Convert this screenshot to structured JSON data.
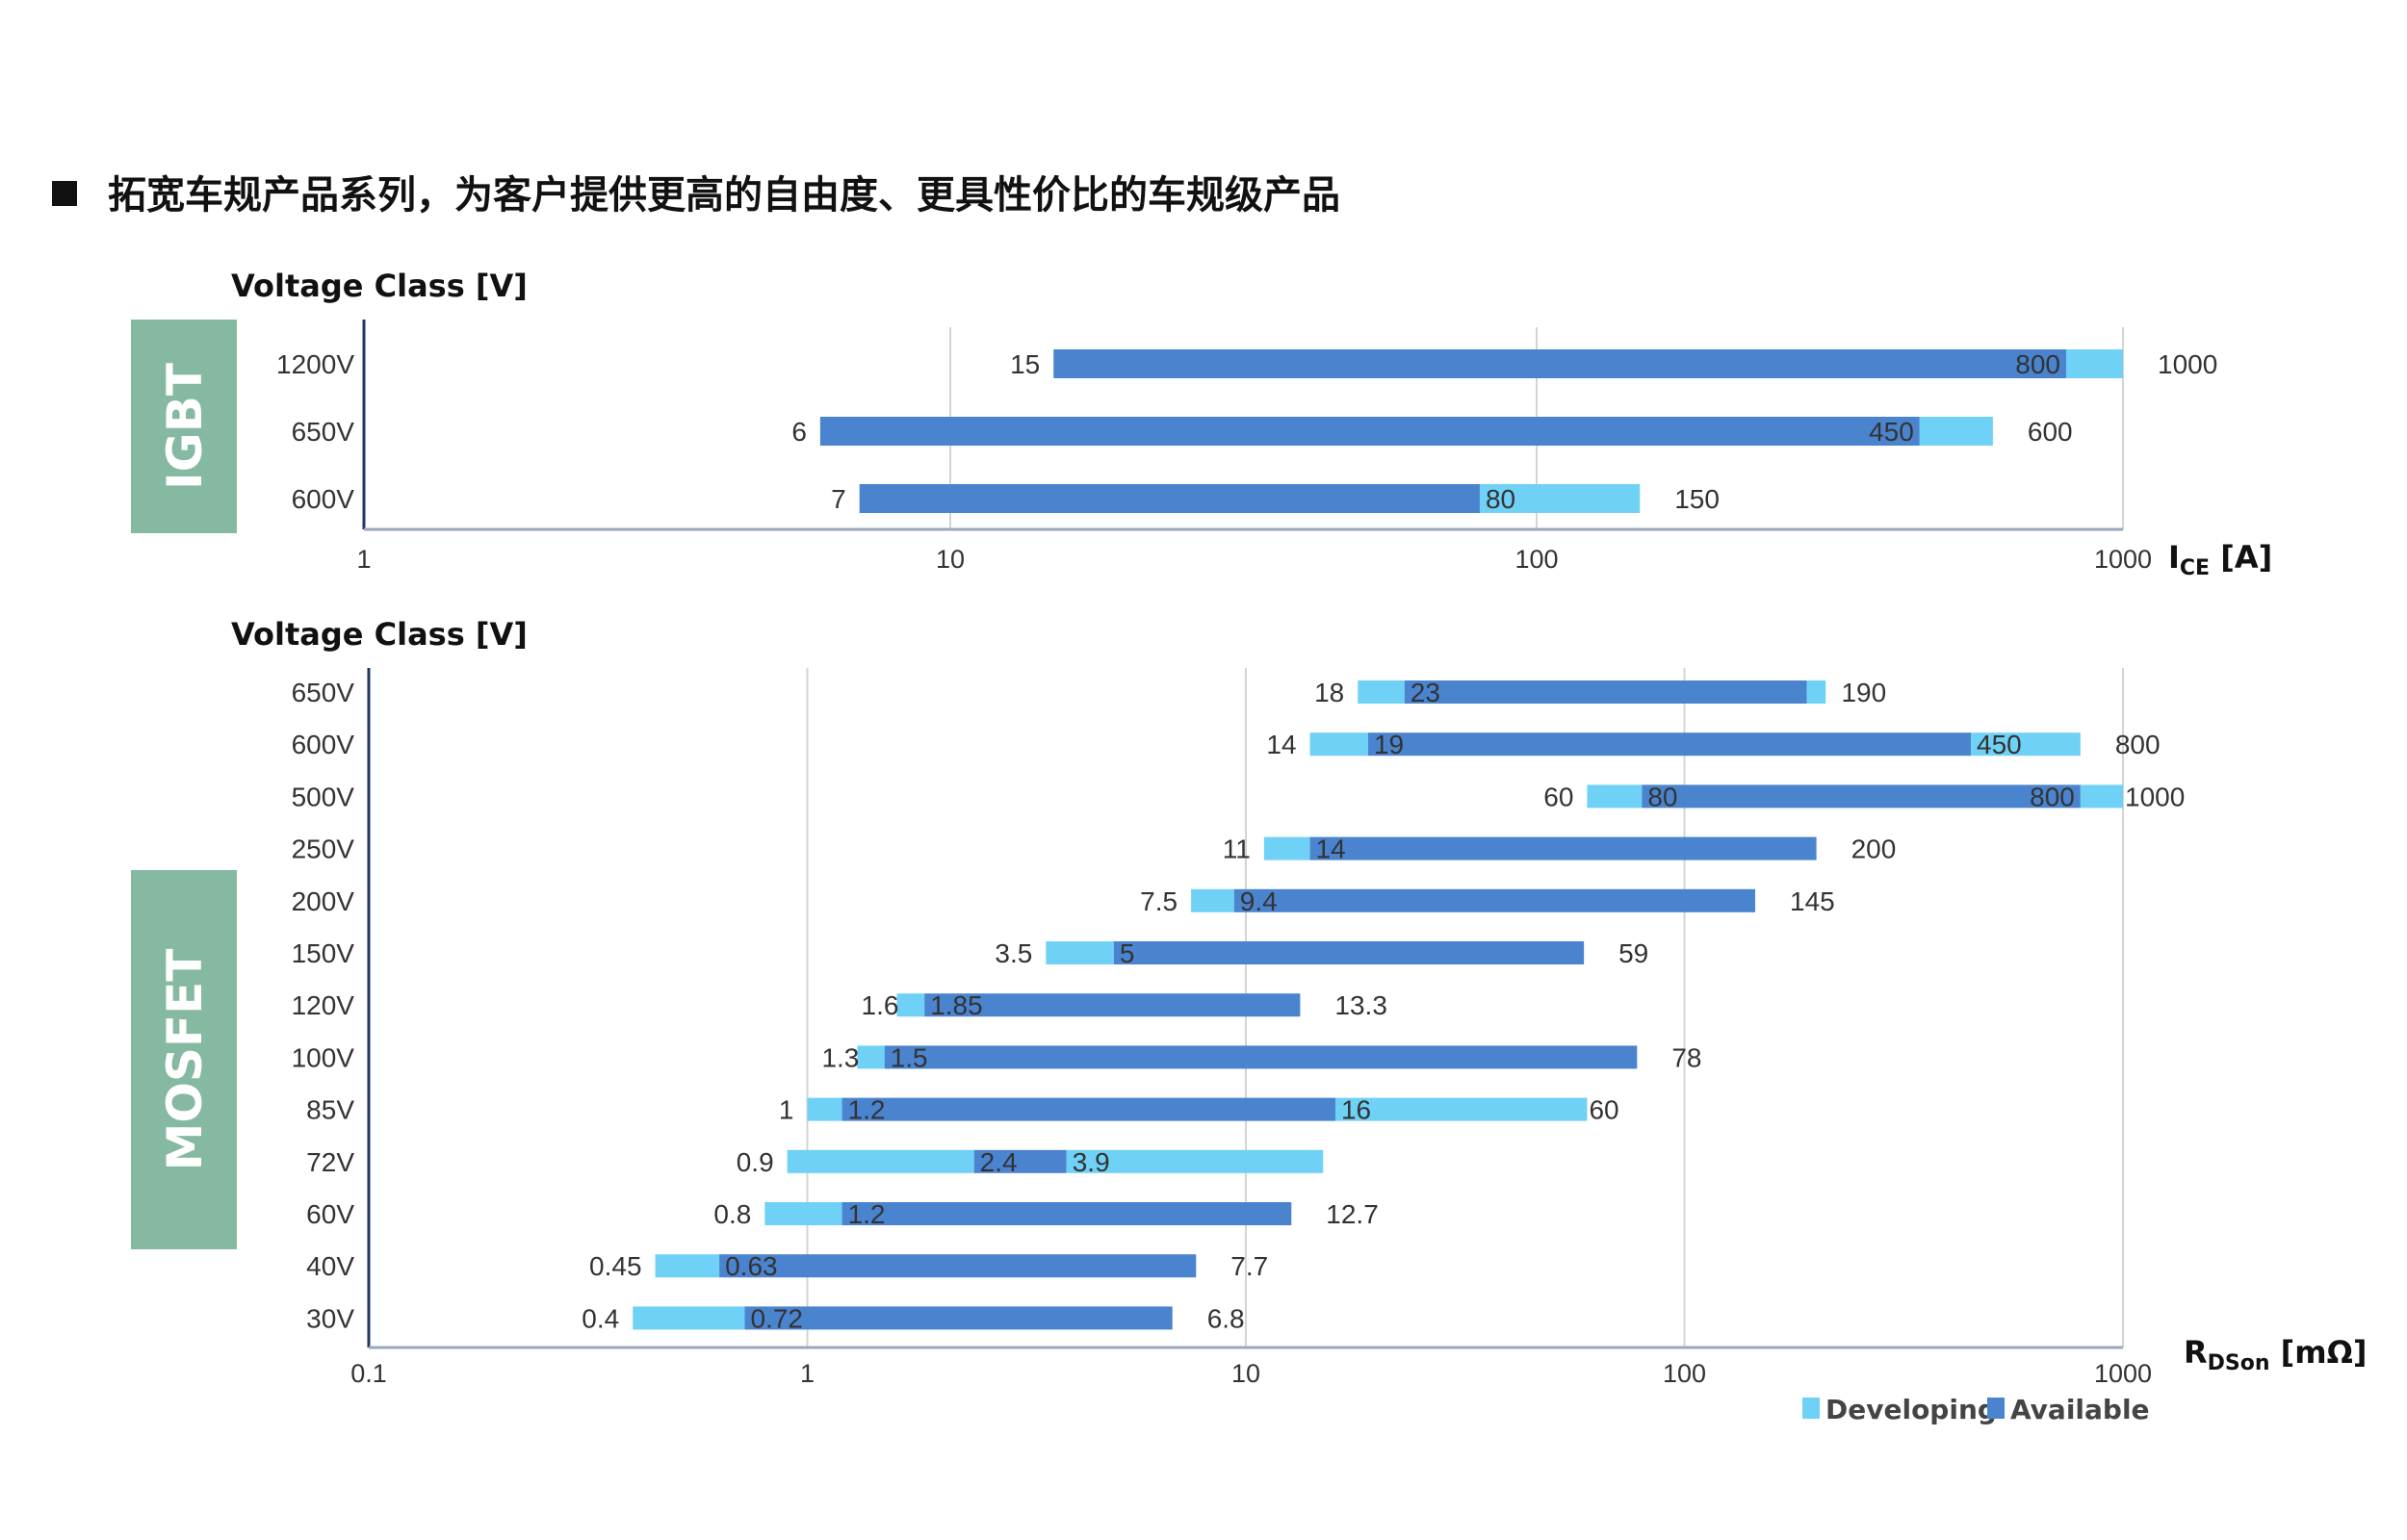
{
  "page": {
    "heading": "拓宽车规产品系列，为客户提供更高的自由度、更具性价比的车规级产品",
    "bullet_icon": "square-bullet-icon"
  },
  "colors": {
    "developing": "#6fd1f5",
    "available": "#4a84cf",
    "side_box": "#86b9a1",
    "grid": "#d4d4d4",
    "axis": "#1f3864"
  },
  "legend": {
    "developing": "Developing",
    "available": "Available"
  },
  "chart_data": [
    {
      "type": "bar",
      "orientation": "horizontal",
      "group_label": "IGBT",
      "y_title": "Voltage Class [V]",
      "x_title_main": "I",
      "x_title_sub": "CE",
      "x_title_unit": " [A]",
      "x_scale": "log",
      "xlim": [
        1,
        1000
      ],
      "x_ticks": [
        1,
        10,
        100,
        1000
      ],
      "x_tick_labels": [
        "1",
        "10",
        "100",
        "1000"
      ],
      "grid": true,
      "categories": [
        "1200V",
        "650V",
        "600V"
      ],
      "series": [
        {
          "key": "available",
          "ranges": [
            [
              15,
              800
            ],
            [
              6,
              450
            ],
            [
              7,
              80
            ]
          ]
        },
        {
          "key": "developing",
          "ranges": [
            [
              800,
              1000
            ],
            [
              450,
              600
            ],
            [
              80,
              150
            ]
          ]
        }
      ],
      "labels": [
        {
          "cat": 0,
          "value": "15",
          "x": 15,
          "pos": "left"
        },
        {
          "cat": 0,
          "value": "800",
          "x": 800,
          "pos": "inside-end",
          "color": "#ffffff"
        },
        {
          "cat": 0,
          "value": "1000",
          "x": 1000,
          "pos": "right"
        },
        {
          "cat": 1,
          "value": "6",
          "x": 6,
          "pos": "left"
        },
        {
          "cat": 1,
          "value": "450",
          "x": 450,
          "pos": "inside-end",
          "color": "#ffffff"
        },
        {
          "cat": 1,
          "value": "600",
          "x": 600,
          "pos": "right"
        },
        {
          "cat": 2,
          "value": "7",
          "x": 7,
          "pos": "left"
        },
        {
          "cat": 2,
          "value": "80",
          "x": 80,
          "pos": "inside-start"
        },
        {
          "cat": 2,
          "value": "150",
          "x": 150,
          "pos": "right"
        }
      ]
    },
    {
      "type": "bar",
      "orientation": "horizontal",
      "group_label": "MOSFET",
      "y_title": "Voltage Class [V]",
      "x_title_main": "R",
      "x_title_sub": "DSon",
      "x_title_unit": " [mΩ]",
      "x_scale": "log",
      "xlim": [
        0.1,
        1000
      ],
      "x_ticks": [
        0.1,
        1,
        10,
        100,
        1000
      ],
      "x_tick_labels": [
        "0.1",
        "1",
        "10",
        "100",
        "1000"
      ],
      "grid": true,
      "legend_position": "bottom-right",
      "categories": [
        "650V",
        "600V",
        "500V",
        "250V",
        "200V",
        "150V",
        "120V",
        "100V",
        "85V",
        "72V",
        "60V",
        "40V",
        "30V"
      ],
      "series": [
        {
          "key": "developing",
          "ranges": [
            [
              18,
              23
            ],
            [
              14,
              19
            ],
            [
              60,
              80
            ],
            [
              11,
              14
            ],
            [
              7.5,
              9.4
            ],
            [
              3.5,
              5
            ],
            [
              1.6,
              1.85
            ],
            [
              1.3,
              1.5
            ],
            [
              1,
              1.2
            ],
            [
              0.9,
              2.4
            ],
            [
              0.8,
              1.2
            ],
            [
              0.45,
              0.63
            ],
            [
              0.4,
              0.72
            ]
          ]
        },
        {
          "key": "available",
          "ranges": [
            [
              23,
              190
            ],
            [
              19,
              450
            ],
            [
              80,
              800
            ],
            [
              14,
              200
            ],
            [
              9.4,
              145
            ],
            [
              5,
              59
            ],
            [
              1.85,
              13.3
            ],
            [
              1.5,
              78
            ],
            [
              1.2,
              16
            ],
            [
              2.4,
              3.9
            ],
            [
              1.2,
              12.7
            ],
            [
              0.63,
              7.7
            ],
            [
              0.72,
              6.8
            ]
          ]
        },
        {
          "key": "developing",
          "ranges": [
            [
              190,
              210
            ],
            [
              450,
              800
            ],
            [
              800,
              1000
            ],
            null,
            null,
            null,
            null,
            null,
            [
              16,
              60
            ],
            [
              3.9,
              15
            ],
            null,
            null,
            null
          ]
        }
      ],
      "labels": [
        {
          "cat": 0,
          "value": "18",
          "x": 18,
          "pos": "left"
        },
        {
          "cat": 0,
          "value": "23",
          "x": 23,
          "pos": "inside-start"
        },
        {
          "cat": 0,
          "value": "190",
          "x": 190,
          "pos": "right"
        },
        {
          "cat": 1,
          "value": "14",
          "x": 14,
          "pos": "left"
        },
        {
          "cat": 1,
          "value": "19",
          "x": 19,
          "pos": "inside-start"
        },
        {
          "cat": 1,
          "value": "450",
          "x": 450,
          "pos": "inside-start"
        },
        {
          "cat": 1,
          "value": "800",
          "x": 800,
          "pos": "right"
        },
        {
          "cat": 2,
          "value": "60",
          "x": 60,
          "pos": "left"
        },
        {
          "cat": 2,
          "value": "80",
          "x": 80,
          "pos": "inside-start"
        },
        {
          "cat": 2,
          "value": "800",
          "x": 800,
          "pos": "inside-end"
        },
        {
          "cat": 2,
          "value": "1000",
          "x": 1000,
          "pos": "right-tight"
        },
        {
          "cat": 3,
          "value": "11",
          "x": 11,
          "pos": "left"
        },
        {
          "cat": 3,
          "value": "14",
          "x": 14,
          "pos": "inside-start"
        },
        {
          "cat": 3,
          "value": "200",
          "x": 200,
          "pos": "right"
        },
        {
          "cat": 4,
          "value": "7.5",
          "x": 7.5,
          "pos": "left"
        },
        {
          "cat": 4,
          "value": "9.4",
          "x": 9.4,
          "pos": "inside-start"
        },
        {
          "cat": 4,
          "value": "145",
          "x": 145,
          "pos": "right"
        },
        {
          "cat": 5,
          "value": "3.5",
          "x": 3.5,
          "pos": "left"
        },
        {
          "cat": 5,
          "value": "5",
          "x": 5,
          "pos": "inside-start"
        },
        {
          "cat": 5,
          "value": "59",
          "x": 59,
          "pos": "right"
        },
        {
          "cat": 6,
          "value": "1.6",
          "x": 1.6,
          "pos": "left-tight"
        },
        {
          "cat": 6,
          "value": "1.85",
          "x": 1.85,
          "pos": "inside-start"
        },
        {
          "cat": 6,
          "value": "13.3",
          "x": 13.3,
          "pos": "right"
        },
        {
          "cat": 7,
          "value": "1.3",
          "x": 1.3,
          "pos": "left-tight"
        },
        {
          "cat": 7,
          "value": "1.5",
          "x": 1.5,
          "pos": "inside-start"
        },
        {
          "cat": 7,
          "value": "78",
          "x": 78,
          "pos": "right"
        },
        {
          "cat": 8,
          "value": "1",
          "x": 1,
          "pos": "left"
        },
        {
          "cat": 8,
          "value": "1.2",
          "x": 1.2,
          "pos": "inside-start"
        },
        {
          "cat": 8,
          "value": "16",
          "x": 16,
          "pos": "inside-start"
        },
        {
          "cat": 8,
          "value": "60",
          "x": 60,
          "pos": "right-tight"
        },
        {
          "cat": 9,
          "value": "0.9",
          "x": 0.9,
          "pos": "left"
        },
        {
          "cat": 9,
          "value": "2.4",
          "x": 2.4,
          "pos": "inside-start"
        },
        {
          "cat": 9,
          "value": "3.9",
          "x": 3.9,
          "pos": "inside-start"
        },
        {
          "cat": 10,
          "value": "0.8",
          "x": 0.8,
          "pos": "left"
        },
        {
          "cat": 10,
          "value": "1.2",
          "x": 1.2,
          "pos": "inside-start"
        },
        {
          "cat": 10,
          "value": "12.7",
          "x": 12.7,
          "pos": "right"
        },
        {
          "cat": 11,
          "value": "0.45",
          "x": 0.45,
          "pos": "left"
        },
        {
          "cat": 11,
          "value": "0.63",
          "x": 0.63,
          "pos": "inside-start"
        },
        {
          "cat": 11,
          "value": "7.7",
          "x": 7.7,
          "pos": "right"
        },
        {
          "cat": 12,
          "value": "0.4",
          "x": 0.4,
          "pos": "left"
        },
        {
          "cat": 12,
          "value": "0.72",
          "x": 0.72,
          "pos": "inside-start"
        },
        {
          "cat": 12,
          "value": "6.8",
          "x": 6.8,
          "pos": "right"
        }
      ]
    }
  ]
}
